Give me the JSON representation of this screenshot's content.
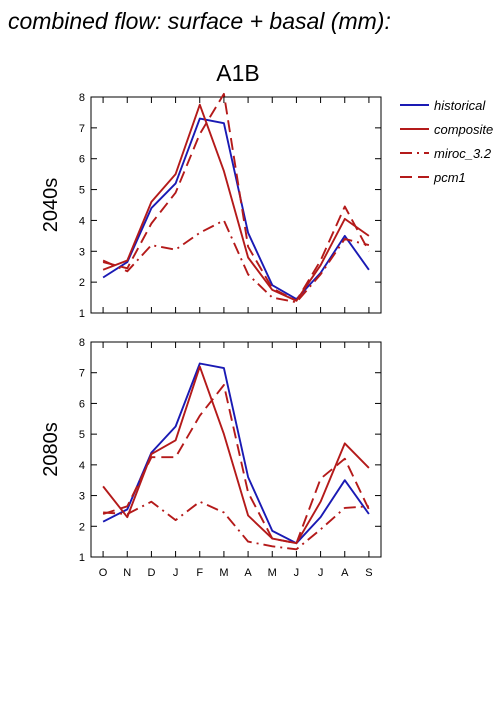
{
  "title": "combined flow: surface + basal (mm):",
  "chart_data": {
    "type": "line",
    "scenario": "A1B",
    "categories": [
      "O",
      "N",
      "D",
      "J",
      "F",
      "M",
      "A",
      "M",
      "J",
      "J",
      "A",
      "S"
    ],
    "ylim": [
      1,
      8
    ],
    "yticks": [
      "1",
      "2",
      "3",
      "4",
      "5",
      "6",
      "7",
      "8"
    ],
    "grid": false,
    "legend": {
      "placement": "right",
      "entries": [
        {
          "label": "historical",
          "color": "#1a1ab4",
          "dash": "solid"
        },
        {
          "label": "composite",
          "color": "#b41a1a",
          "dash": "solid"
        },
        {
          "label": "miroc_3.2",
          "color": "#b41a1a",
          "dash": "dashdot"
        },
        {
          "label": "pcm1",
          "color": "#b41a1a",
          "dash": "dashed"
        }
      ]
    },
    "panels": [
      {
        "ylabel": "2040s",
        "series": [
          {
            "name": "historical",
            "values": [
              2.15,
              2.65,
              4.4,
              5.2,
              7.3,
              7.15,
              3.6,
              1.9,
              1.45,
              2.3,
              3.5,
              2.4
            ]
          },
          {
            "name": "composite",
            "values": [
              2.4,
              2.7,
              4.6,
              5.5,
              7.75,
              5.6,
              2.8,
              1.75,
              1.4,
              2.55,
              4.05,
              3.5
            ]
          },
          {
            "name": "miroc_3.2",
            "values": [
              2.7,
              2.35,
              3.2,
              3.05,
              3.6,
              4.0,
              2.25,
              1.5,
              1.35,
              2.25,
              3.4,
              3.2
            ]
          },
          {
            "name": "pcm1",
            "values": [
              2.65,
              2.45,
              3.9,
              4.9,
              6.8,
              8.1,
              3.15,
              1.8,
              1.4,
              2.7,
              4.45,
              3.0
            ]
          }
        ]
      },
      {
        "ylabel": "2080s",
        "series": [
          {
            "name": "historical",
            "values": [
              2.15,
              2.55,
              4.4,
              5.25,
              7.3,
              7.15,
              3.6,
              1.85,
              1.45,
              2.3,
              3.5,
              2.4
            ]
          },
          {
            "name": "composite",
            "values": [
              3.3,
              2.3,
              4.35,
              4.8,
              7.2,
              5.0,
              2.35,
              1.6,
              1.45,
              2.8,
              4.7,
              3.9
            ]
          },
          {
            "name": "miroc_3.2",
            "values": [
              2.45,
              2.4,
              2.8,
              2.2,
              2.8,
              2.45,
              1.5,
              1.35,
              1.25,
              1.9,
              2.6,
              2.65
            ]
          },
          {
            "name": "pcm1",
            "values": [
              2.4,
              2.65,
              4.25,
              4.25,
              5.6,
              6.6,
              3.1,
              1.6,
              1.45,
              3.55,
              4.2,
              2.55
            ]
          }
        ]
      }
    ]
  }
}
